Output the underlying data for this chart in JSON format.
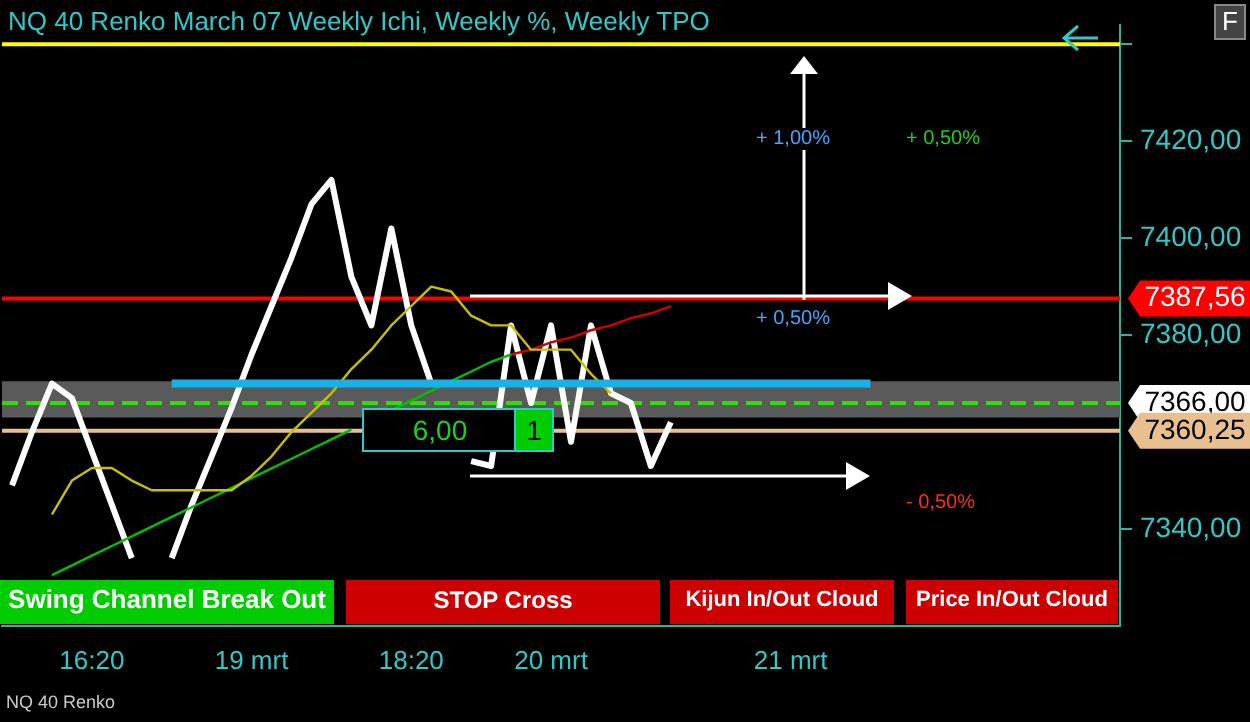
{
  "chart_data": {
    "type": "line",
    "title": "NQ 40 Renko March 07 Weekly  Ichi,  Weekly %, Weekly TPO",
    "categories": [
      null,
      null,
      null,
      null,
      "16:20",
      null,
      null,
      null,
      null,
      null,
      null,
      null,
      "19 mrt",
      null,
      null,
      null,
      null,
      null,
      null,
      null,
      "18:20",
      null,
      null,
      null,
      null,
      null,
      null,
      "20 mrt",
      null,
      null,
      null,
      null,
      null,
      null,
      null,
      null,
      null,
      null,
      null,
      "21 mrt",
      null,
      null,
      null,
      null,
      null,
      null,
      null,
      null,
      null,
      null,
      null,
      null,
      null,
      null,
      null,
      null
    ],
    "series": [
      {
        "color": "#1ab0e8",
        "values": [
          null,
          null,
          null,
          null,
          null,
          null,
          null,
          null,
          7370,
          7370,
          7370,
          7370,
          7370,
          7370,
          7370,
          7370,
          7370,
          7370,
          7370,
          7370,
          7370,
          7370,
          7370,
          7370,
          7370,
          7370,
          7370,
          7370,
          7370,
          7370,
          7370,
          7370,
          7370,
          7370,
          7370,
          7370,
          7370,
          7370,
          7370,
          7370,
          7370,
          7370,
          7370,
          7370,
          null,
          null,
          null,
          null,
          null,
          null,
          null,
          null,
          null,
          null,
          null,
          null
        ]
      },
      {
        "color": "#c8c000",
        "values": [
          null,
          null,
          7343,
          7350,
          7352.6,
          7352.6,
          7350,
          7348,
          7348,
          7348,
          7348,
          7348,
          7351,
          7355,
          7360,
          7364,
          7368,
          7373,
          7377,
          7382,
          7386,
          7390,
          7389,
          7384,
          7382,
          7382,
          7377,
          7377,
          7377,
          7372,
          7368,
          null,
          null,
          null,
          null,
          null,
          null,
          null,
          null,
          null,
          null,
          null,
          null,
          null,
          null,
          null,
          null,
          null,
          null,
          null,
          null,
          null,
          null,
          null,
          null,
          null
        ]
      },
      {
        "color": "#00c000",
        "values": [
          null,
          null,
          7330.5,
          7332.5,
          7334.5,
          7336.5,
          7338.5,
          7340.5,
          7342.5,
          7344.5,
          7346.5,
          7348.5,
          7350.5,
          7352.5,
          7354.5,
          7356.5,
          7358.5,
          7360.5,
          null,
          7364.5,
          7366.5,
          7368.5,
          7370.5,
          7372.5,
          7374.5,
          7376,
          null,
          null,
          null,
          null,
          null,
          null,
          null,
          null,
          null,
          null,
          null,
          null,
          null,
          null,
          null,
          null,
          null,
          null,
          null,
          null,
          null,
          null,
          null,
          null,
          null,
          null,
          null,
          null,
          null,
          null
        ]
      },
      {
        "color": "#d00000",
        "values": [
          null,
          null,
          null,
          null,
          null,
          null,
          null,
          null,
          null,
          null,
          null,
          null,
          null,
          null,
          null,
          null,
          null,
          null,
          null,
          null,
          null,
          null,
          null,
          null,
          null,
          7376,
          7377,
          7378.5,
          7379.5,
          7381,
          7382,
          7383.5,
          7384.5,
          7386,
          null,
          null,
          null,
          null,
          null,
          null,
          null,
          null,
          null,
          null,
          null,
          null,
          null,
          null,
          null,
          null,
          null,
          null,
          null,
          null,
          null,
          null
        ]
      },
      {
        "color": "#ffffff",
        "values": [
          7349,
          7360,
          7370,
          7367,
          7356,
          7345,
          7334,
          null,
          7334,
          7345,
          7355,
          7365,
          7376,
          7386,
          7396,
          7407,
          7412,
          7392,
          7382,
          7402,
          7382,
          7370,
          null,
          7354,
          7353,
          7382,
          7366,
          7382,
          7358,
          7382,
          7368,
          7366,
          7353,
          7362,
          null,
          null,
          null,
          null,
          null,
          null,
          null,
          null,
          null,
          null,
          null,
          null,
          null,
          null,
          null,
          null,
          null,
          null,
          null,
          null,
          null,
          null
        ]
      }
    ],
    "ylim": [
      7320,
      7444
    ],
    "yticks": [
      {
        "value": 7340,
        "label": "7340,00"
      },
      {
        "value": 7380,
        "label": "7380,00"
      },
      {
        "value": 7400,
        "label": "7400,00"
      },
      {
        "value": 7420,
        "label": "7420,00"
      },
      {
        "value": 7440,
        "label": null
      }
    ],
    "ref_lines": [
      {
        "axis": "y",
        "value": 7440,
        "color": "#ffff00"
      },
      {
        "axis": "y",
        "value": 7366,
        "color": "#33dd00",
        "line_style": "dashed",
        "label": "7366,00"
      },
      {
        "axis": "y",
        "value": 7360.25,
        "color": "#e8c090",
        "label": "7360,25"
      },
      {
        "axis": "y",
        "value": 7387.56,
        "color": "#ff0000",
        "label": "7387,56"
      }
    ],
    "bands": [
      {
        "axis": "y",
        "from": 7363,
        "to": 7370.5,
        "color": "#5a5a5a"
      }
    ],
    "annotations": [
      "+ 1,00%",
      "+ 0,50%",
      "+ 0,50%",
      "- 0,50%",
      "6,00",
      "1",
      "Swing Channel Break Out",
      "STOP Cross",
      "Kijun In/Out Cloud",
      "Price In/Out Cloud",
      "F",
      "NQ 40 Renko"
    ],
    "grid": false,
    "legend": false
  }
}
